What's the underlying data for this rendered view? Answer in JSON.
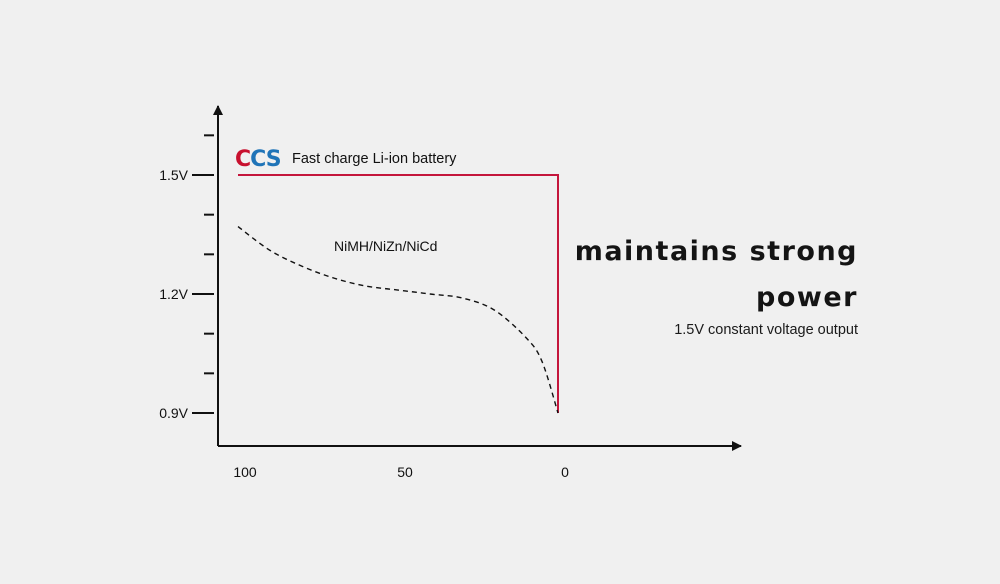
{
  "headline": {
    "line1": "maintains strong",
    "line2": "power",
    "subline": "1.5V constant voltage output"
  },
  "logo": {
    "text": "CCS",
    "colors": [
      "#c8102e",
      "#1f74b8"
    ]
  },
  "chart_data": {
    "type": "line",
    "title": "",
    "xlabel": "",
    "ylabel": "",
    "x_ticks": [
      "100",
      "50",
      "0"
    ],
    "x_direction": "reversed",
    "xlim": [
      100,
      0
    ],
    "y_ticks": [
      "1.5V",
      "1.2V",
      "0.9V"
    ],
    "y_tick_values": [
      1.5,
      1.2,
      0.9
    ],
    "ylim": [
      0.9,
      1.5
    ],
    "grid": false,
    "series": [
      {
        "name": "Fast charge Li-ion battery",
        "style": "solid",
        "color": "#c4163c",
        "x": [
          100,
          0,
          0
        ],
        "y": [
          1.5,
          1.5,
          0.9
        ]
      },
      {
        "name": "NiMH/NiZn/NiCd",
        "style": "dashed",
        "color": "#111111",
        "x": [
          100,
          90,
          80,
          70,
          60,
          50,
          40,
          30,
          20,
          10,
          5,
          0
        ],
        "y": [
          1.37,
          1.31,
          1.27,
          1.24,
          1.22,
          1.21,
          1.2,
          1.19,
          1.16,
          1.09,
          1.03,
          0.9
        ]
      }
    ]
  }
}
